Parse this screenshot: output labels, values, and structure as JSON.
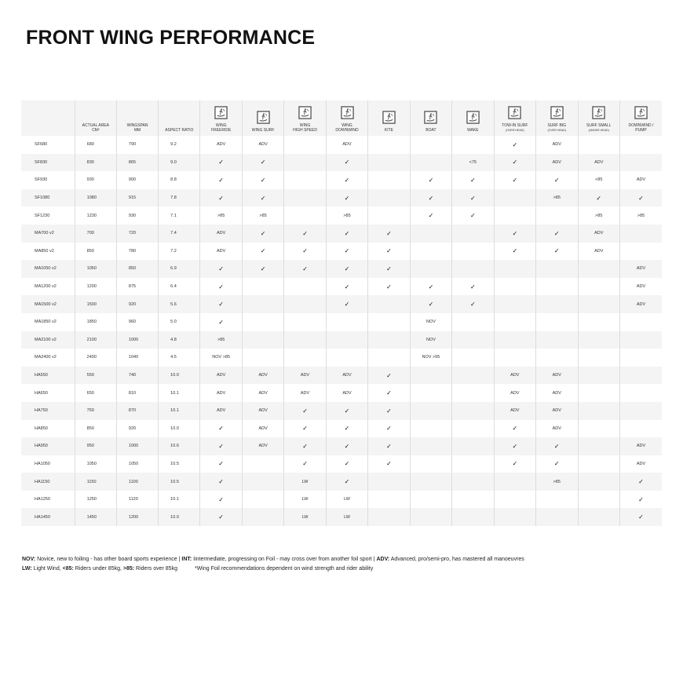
{
  "title": "FRONT WING PERFORMANCE",
  "columns": [
    {
      "label": "",
      "sub": ""
    },
    {
      "label": "ACTUAL AREA",
      "sub": "CM²"
    },
    {
      "label": "WINGSPAN",
      "sub": "MM"
    },
    {
      "label": "ASPECT RATIO",
      "sub": ""
    },
    {
      "label": "WING",
      "sub": "FREERIDE",
      "icon": "wing-freeride-icon"
    },
    {
      "label": "WING SURF",
      "sub": "",
      "icon": "wing-surf-icon"
    },
    {
      "label": "WING",
      "sub": "HIGH SPEED",
      "icon": "wing-high-speed-icon"
    },
    {
      "label": "WING",
      "sub": "DOWNWIND",
      "icon": "wing-downwind-icon"
    },
    {
      "label": "KITE",
      "sub": "",
      "icon": "kite-icon"
    },
    {
      "label": "BOAT",
      "sub": "",
      "icon": "boat-icon"
    },
    {
      "label": "WAKE",
      "sub": "",
      "icon": "wake-icon"
    },
    {
      "label": "TOW-IN SURF",
      "sub": "(OVER HEAD)",
      "small": true,
      "icon": "tow-in-surf-icon"
    },
    {
      "label": "SURF BIG",
      "sub": "(OVER HEAD)",
      "small": true,
      "icon": "surf-big-icon"
    },
    {
      "label": "SURF SMALL",
      "sub": "(UNDER HEAD)",
      "small": true,
      "icon": "surf-small-icon"
    },
    {
      "label": "DOWNWIND /",
      "sub": "PUMP",
      "icon": "downwind-pump-icon"
    }
  ],
  "rows": [
    [
      "SF680",
      "680",
      "790",
      "9.2",
      "ADV",
      "ADV",
      "",
      "ADV",
      "",
      "",
      "",
      "✓",
      "ADV",
      "",
      ""
    ],
    [
      "SF830",
      "830",
      "865",
      "9.0",
      "✓",
      "✓",
      "",
      "✓",
      "",
      "",
      "<75",
      "✓",
      "ADV",
      "ADV",
      ""
    ],
    [
      "SF930",
      "930",
      "900",
      "8.8",
      "✓",
      "✓",
      "",
      "✓",
      "",
      "✓",
      "✓",
      "✓",
      "✓",
      "<85",
      "ADV"
    ],
    [
      "SF1080",
      "1080",
      "915",
      "7.8",
      "✓",
      "✓",
      "",
      "✓",
      "",
      "✓",
      "✓",
      "",
      ">85",
      "✓",
      "✓"
    ],
    [
      "SF1230",
      "1230",
      "930",
      "7.1",
      ">85",
      ">85",
      "",
      ">85",
      "",
      "✓",
      "✓",
      "",
      "",
      ">85",
      ">85"
    ],
    [
      "MA700 v2",
      "700",
      "720",
      "7.4",
      "ADV",
      "✓",
      "✓",
      "✓",
      "✓",
      "",
      "",
      "✓",
      "✓",
      "ADV",
      ""
    ],
    [
      "MA850 v2",
      "850",
      "780",
      "7.2",
      "ADV",
      "✓",
      "✓",
      "✓",
      "✓",
      "",
      "",
      "✓",
      "✓",
      "ADV",
      ""
    ],
    [
      "MA1050 v2",
      "1050",
      "850",
      "6.9",
      "✓",
      "✓",
      "✓",
      "✓",
      "✓",
      "",
      "",
      "",
      "",
      "",
      "ADV"
    ],
    [
      "MA1200 v2",
      "1200",
      "875",
      "6.4",
      "✓",
      "",
      "",
      "✓",
      "✓",
      "✓",
      "✓",
      "",
      "",
      "",
      "ADV"
    ],
    [
      "MA1500 v2",
      "1500",
      "920",
      "5.6",
      "✓",
      "",
      "",
      "✓",
      "",
      "✓",
      "✓",
      "",
      "",
      "",
      "ADV"
    ],
    [
      "MA1850 v2",
      "1850",
      "960",
      "5.0",
      "✓",
      "",
      "",
      "",
      "",
      "NOV",
      "",
      "",
      "",
      "",
      ""
    ],
    [
      "MA2100 v2",
      "2100",
      "1000",
      "4.8",
      ">85",
      "",
      "",
      "",
      "",
      "NOV",
      "",
      "",
      "",
      "",
      ""
    ],
    [
      "MA2400 v2",
      "2400",
      "1040",
      "4.5",
      "NOV >85",
      "",
      "",
      "",
      "",
      "NOV >95",
      "",
      "",
      "",
      "",
      ""
    ],
    [
      "HA550",
      "550",
      "740",
      "10.0",
      "ADV",
      "ADV",
      "ADV",
      "ADV",
      "✓",
      "",
      "",
      "ADV",
      "ADV",
      "",
      ""
    ],
    [
      "HA650",
      "650",
      "810",
      "10.1",
      "ADV",
      "ADV",
      "ADV",
      "ADV",
      "✓",
      "",
      "",
      "ADV",
      "ADV",
      "",
      ""
    ],
    [
      "HA750",
      "750",
      "870",
      "10.1",
      "ADV",
      "ADV",
      "✓",
      "✓",
      "✓",
      "",
      "",
      "ADV",
      "ADV",
      "",
      ""
    ],
    [
      "HA850",
      "850",
      "920",
      "10.0",
      "✓",
      "ADV",
      "✓",
      "✓",
      "✓",
      "",
      "",
      "✓",
      "ADV",
      "",
      ""
    ],
    [
      "HA950",
      "950",
      "1000",
      "10.6",
      "✓",
      "ADV",
      "✓",
      "✓",
      "✓",
      "",
      "",
      "✓",
      "✓",
      "",
      "ADV"
    ],
    [
      "HA1050",
      "1050",
      "1050",
      "10.5",
      "✓",
      "",
      "✓",
      "✓",
      "✓",
      "",
      "",
      "✓",
      "✓",
      "",
      "ADV"
    ],
    [
      "HA1150",
      "1150",
      "1100",
      "10.5",
      "✓",
      "",
      "LW",
      "✓",
      "",
      "",
      "",
      "",
      ">85",
      "",
      "✓"
    ],
    [
      "HA1250",
      "1250",
      "1120",
      "10.1",
      "✓",
      "",
      "LW",
      "LW",
      "",
      "",
      "",
      "",
      "",
      "",
      "✓"
    ],
    [
      "HA1450",
      "1450",
      "1200",
      "10.0",
      "✓",
      "",
      "LW",
      "LW",
      "",
      "",
      "",
      "",
      "",
      "",
      "✓"
    ]
  ],
  "legend": {
    "line1": [
      {
        "k": "NOV:",
        "v": " Novice, new to foiling - has other board sports experience | "
      },
      {
        "k": "INT:",
        "v": " Iintermediate, progressing on Foil - may cross over from another foil sport | "
      },
      {
        "k": "ADV:",
        "v": " Advanced, pro/semi-pro, has mastered all manoeuvres"
      }
    ],
    "line2": [
      {
        "k": "LW:",
        "v": " Light Wind, "
      },
      {
        "k": "<85:",
        "v": " Riders under 85kg, "
      },
      {
        "k": ">85:",
        "v": " Riders over 85kg"
      }
    ],
    "note": "*Wing Foil recommendations dependent on wind strength and rider ability"
  }
}
